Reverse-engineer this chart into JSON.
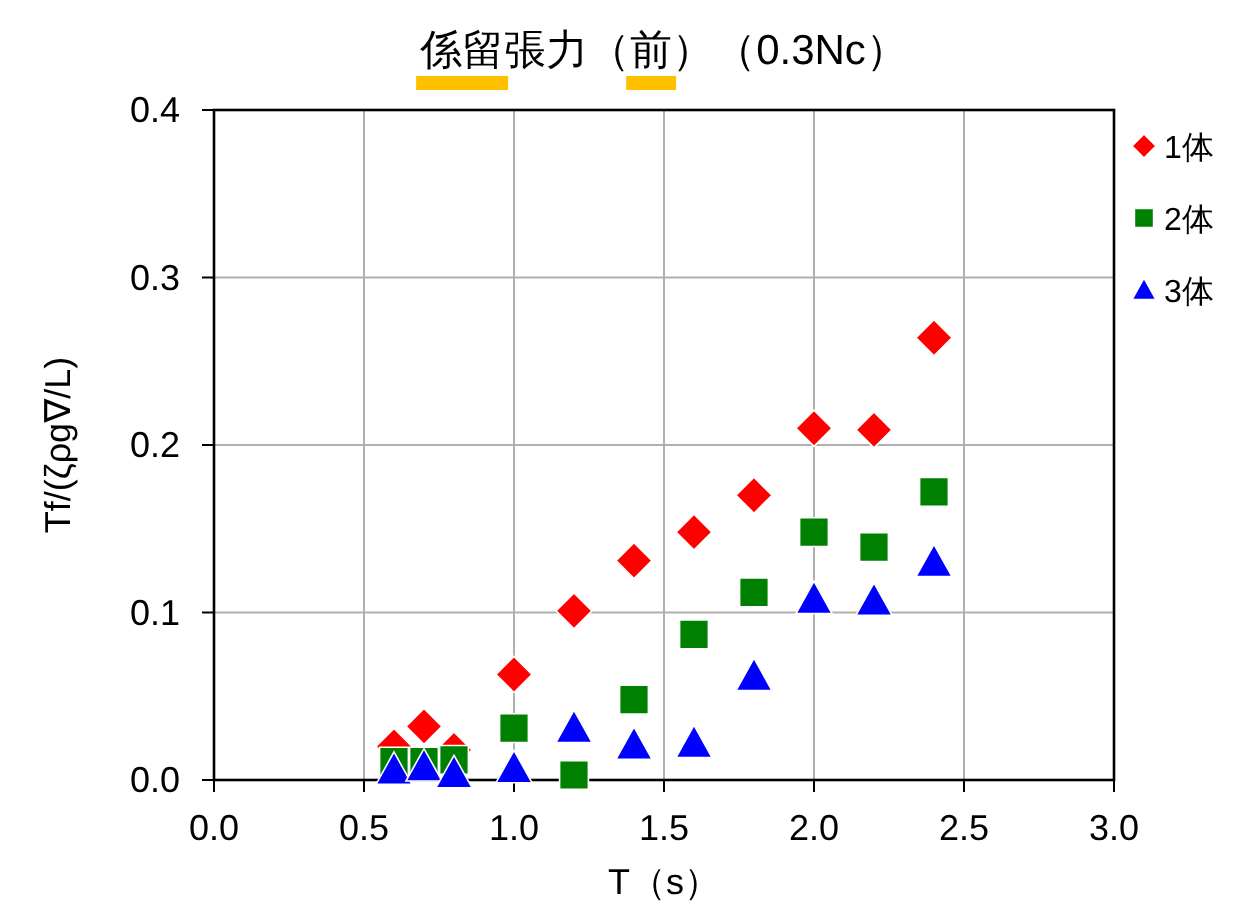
{
  "chart_data": {
    "type": "scatter",
    "title": "係留張力（前）（0.3Nc）",
    "xlabel": "T（s）",
    "ylabel": "Tf/(ζρg∇/L)",
    "x": [
      0.6,
      0.7,
      0.8,
      1.0,
      1.2,
      1.4,
      1.6,
      1.8,
      2.0,
      2.2,
      2.4
    ],
    "series": [
      {
        "name": "1体",
        "color": "#ff0000",
        "marker": "diamond",
        "values": [
          0.02,
          0.032,
          0.018,
          0.063,
          0.101,
          0.131,
          0.148,
          0.17,
          0.21,
          0.209,
          0.264
        ]
      },
      {
        "name": "2体",
        "color": "#008000",
        "marker": "square",
        "values": [
          0.011,
          0.011,
          0.012,
          0.031,
          0.003,
          0.048,
          0.087,
          0.112,
          0.148,
          0.139,
          0.172
        ]
      },
      {
        "name": "3体",
        "color": "#0000ff",
        "marker": "triangle",
        "values": [
          0.006,
          0.008,
          0.004,
          0.007,
          0.031,
          0.021,
          0.022,
          0.062,
          0.108,
          0.107,
          0.13
        ]
      }
    ],
    "xlim": [
      0,
      3
    ],
    "ylim": [
      0,
      0.4
    ],
    "xticks": [
      {
        "value": 0,
        "label": "0.0"
      },
      {
        "value": 0.5,
        "label": "0.5"
      },
      {
        "value": 1,
        "label": "1.0"
      },
      {
        "value": 1.5,
        "label": "1.5"
      },
      {
        "value": 2,
        "label": "2.0"
      },
      {
        "value": 2.5,
        "label": "2.5"
      },
      {
        "value": 3,
        "label": "3.0"
      }
    ],
    "yticks": [
      {
        "value": 0,
        "label": "0.0"
      },
      {
        "value": 0.1,
        "label": "0.1"
      },
      {
        "value": 0.2,
        "label": "0.2"
      },
      {
        "value": 0.3,
        "label": "0.3"
      },
      {
        "value": 0.4,
        "label": "0.4"
      }
    ],
    "grid": true,
    "legend": "top right"
  }
}
